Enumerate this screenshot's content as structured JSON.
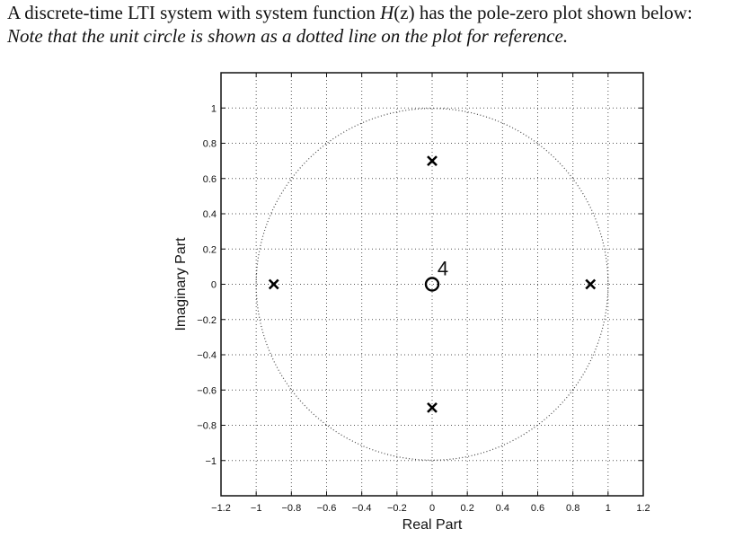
{
  "problem": {
    "line1_prefix": "A discrete-time LTI system with system function ",
    "line1_func": "H",
    "line1_arg": "(z)",
    "line1_suffix": " has the pole-zero plot shown below:",
    "line2": "Note that the unit circle is shown as a dotted line on the plot for reference."
  },
  "chart_data": {
    "type": "scatter",
    "title": "",
    "xlabel": "Real Part",
    "ylabel": "Imaginary Part",
    "xlim": [
      -1.2,
      1.2
    ],
    "ylim": [
      -1.2,
      1.2
    ],
    "grid": true,
    "xticks": [
      "−1.2",
      "−1",
      "−0.8",
      "−0.6",
      "−0.4",
      "−0.2",
      "0",
      "0.2",
      "0.4",
      "0.6",
      "0.8",
      "1",
      "1.2"
    ],
    "yticks": [
      "1",
      "0.8",
      "0.6",
      "0.4",
      "0.2",
      "0",
      "−0.2",
      "−0.4",
      "−0.6",
      "−0.8",
      "−1"
    ],
    "unit_circle": {
      "radius": 1,
      "style": "dotted"
    },
    "series": [
      {
        "name": "poles",
        "marker": "x",
        "points": [
          [
            -0.9,
            0
          ],
          [
            0.9,
            0
          ],
          [
            0,
            0.7
          ],
          [
            0,
            -0.7
          ]
        ]
      },
      {
        "name": "zeros",
        "marker": "o",
        "points": [
          [
            0,
            0
          ]
        ],
        "multiplicity": [
          4
        ]
      }
    ],
    "annotations": [
      {
        "text": "4",
        "x": 0.03,
        "y": 0.05
      }
    ]
  }
}
